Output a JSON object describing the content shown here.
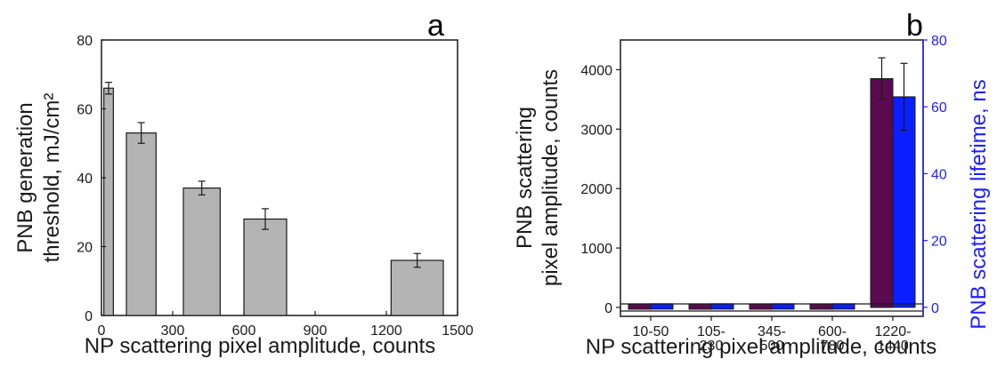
{
  "chart_data": [
    {
      "type": "bar",
      "panel_label": "a",
      "xlabel": "NP scattering pixel amplitude, counts",
      "ylabel_lines": [
        "PNB generation",
        "threshold, mJ/cm²"
      ],
      "xlim": [
        0,
        1500
      ],
      "ylim": [
        0,
        80
      ],
      "xticks": [
        0,
        300,
        600,
        900,
        1200,
        1500
      ],
      "yticks": [
        0,
        20,
        40,
        60,
        80
      ],
      "bar_color": "#b4b4b4",
      "bars": [
        {
          "x_from": 10,
          "x_to": 50,
          "value": 66,
          "error": 1.7
        },
        {
          "x_from": 105,
          "x_to": 230,
          "value": 53,
          "error": 3
        },
        {
          "x_from": 345,
          "x_to": 500,
          "value": 37,
          "error": 2
        },
        {
          "x_from": 600,
          "x_to": 780,
          "value": 28,
          "error": 3
        },
        {
          "x_from": 1220,
          "x_to": 1440,
          "value": 16,
          "error": 2
        }
      ]
    },
    {
      "type": "bar",
      "panel_label": "b",
      "xlabel": "NP scattering pixel amplitude, counts",
      "ylabel_lines": [
        "PNB scattering",
        "pixel amplitude, counts"
      ],
      "ylabel_right": "PNB scattering lifetime, ns",
      "categories": [
        [
          "10-50"
        ],
        [
          "105-",
          "230"
        ],
        [
          "345-",
          "500"
        ],
        [
          "600-",
          "780"
        ],
        [
          "1220-",
          "1440"
        ]
      ],
      "ylim_left": [
        -150,
        4500
      ],
      "yticks_left": [
        0,
        1000,
        2000,
        3000,
        4000
      ],
      "ylim_right": [
        -2.7,
        80
      ],
      "yticks_right": [
        0,
        20,
        40,
        60,
        80
      ],
      "axis_break": "y=0 baseline",
      "series": [
        {
          "axis": "left",
          "color": "#5a0a4e",
          "values": [
            0,
            0,
            0,
            0,
            3850
          ],
          "errors": [
            0,
            0,
            0,
            0,
            350
          ]
        },
        {
          "axis": "right",
          "color": "#0a1eff",
          "values": [
            0,
            0,
            0,
            0,
            63
          ],
          "errors": [
            0,
            0,
            0,
            0,
            10
          ]
        }
      ]
    }
  ]
}
